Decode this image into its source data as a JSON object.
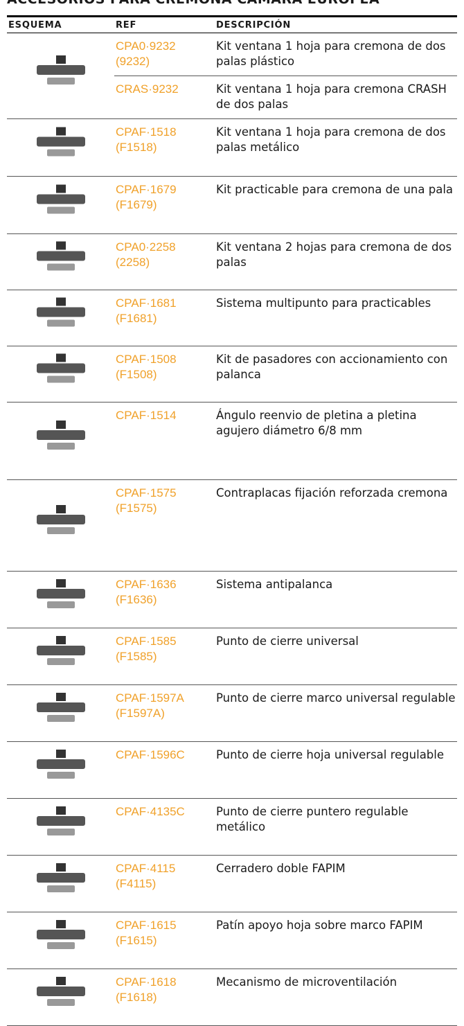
{
  "title": "ACCESORIOS PARA CREMONA CÁMARA EUROPEA",
  "table": {
    "headers": [
      "ESQUEMA",
      "REF",
      "DESCRIPCIÓN"
    ],
    "groups": [
      {
        "items": [
          {
            "ref": "CPA0·9232",
            "alt": "(9232)",
            "desc": "Kit ventana 1 hoja para cremona de dos palas plástico"
          },
          {
            "ref": "CRAS·9232",
            "desc": "Kit ventana 1 hoja para cremona CRASH de dos palas"
          }
        ]
      },
      {
        "items": [
          {
            "ref": "CPAF·1518",
            "alt": "(F1518)",
            "desc": "Kit ventana 1 hoja para cremona de dos palas metálico"
          }
        ]
      },
      {
        "items": [
          {
            "ref": "CPAF·1679",
            "alt": "(F1679)",
            "desc": "Kit practicable para cremona de una pala"
          }
        ]
      },
      {
        "items": [
          {
            "ref": "CPA0·2258",
            "alt": "(2258)",
            "desc": "Kit ventana 2 hojas para cremona de dos palas"
          }
        ]
      },
      {
        "items": [
          {
            "ref": "CPAF·1681",
            "alt": "(F1681)",
            "desc": "Sistema multipunto para practicables"
          }
        ]
      },
      {
        "items": [
          {
            "ref": "CPAF·1508",
            "alt": "(F1508)",
            "desc": "Kit de pasadores con accionamiento con palanca"
          }
        ]
      },
      {
        "items": [
          {
            "ref": "CPAF·1514",
            "desc": "Ángulo reenvio de pletina a pletina agujero diámetro 6/8 mm"
          }
        ]
      },
      {
        "items": [
          {
            "ref": "CPAF·1575",
            "alt": "(F1575)",
            "desc": "Contraplacas fijación reforzada cremona"
          }
        ]
      },
      {
        "items": [
          {
            "ref": "CPAF·1636",
            "alt": "(F1636)",
            "desc": "Sistema antipalanca"
          }
        ]
      },
      {
        "items": [
          {
            "ref": "CPAF·1585",
            "alt": "(F1585)",
            "desc": "Punto de cierre universal"
          }
        ]
      },
      {
        "items": [
          {
            "ref": "CPAF·1597A",
            "alt": "(F1597A)",
            "desc": "Punto de cierre marco universal regulable"
          }
        ]
      },
      {
        "items": [
          {
            "ref": "CPAF·1596C",
            "desc": "Punto de cierre hoja universal regulable"
          }
        ]
      },
      {
        "items": [
          {
            "ref": "CPAF·4135C",
            "desc": "Punto de cierre puntero regulable metálico"
          }
        ]
      },
      {
        "items": [
          {
            "ref": "CPAF·4115",
            "alt": "(F4115)",
            "desc": "Cerradero doble FAPIM"
          }
        ]
      },
      {
        "items": [
          {
            "ref": "CPAF·1615",
            "alt": "(F1615)",
            "desc": "Patín apoyo hoja sobre marco FAPIM"
          }
        ]
      },
      {
        "items": [
          {
            "ref": "CPAF·1618",
            "alt": "(F1618)",
            "desc": "Mecanismo de microventilación"
          }
        ]
      }
    ]
  }
}
